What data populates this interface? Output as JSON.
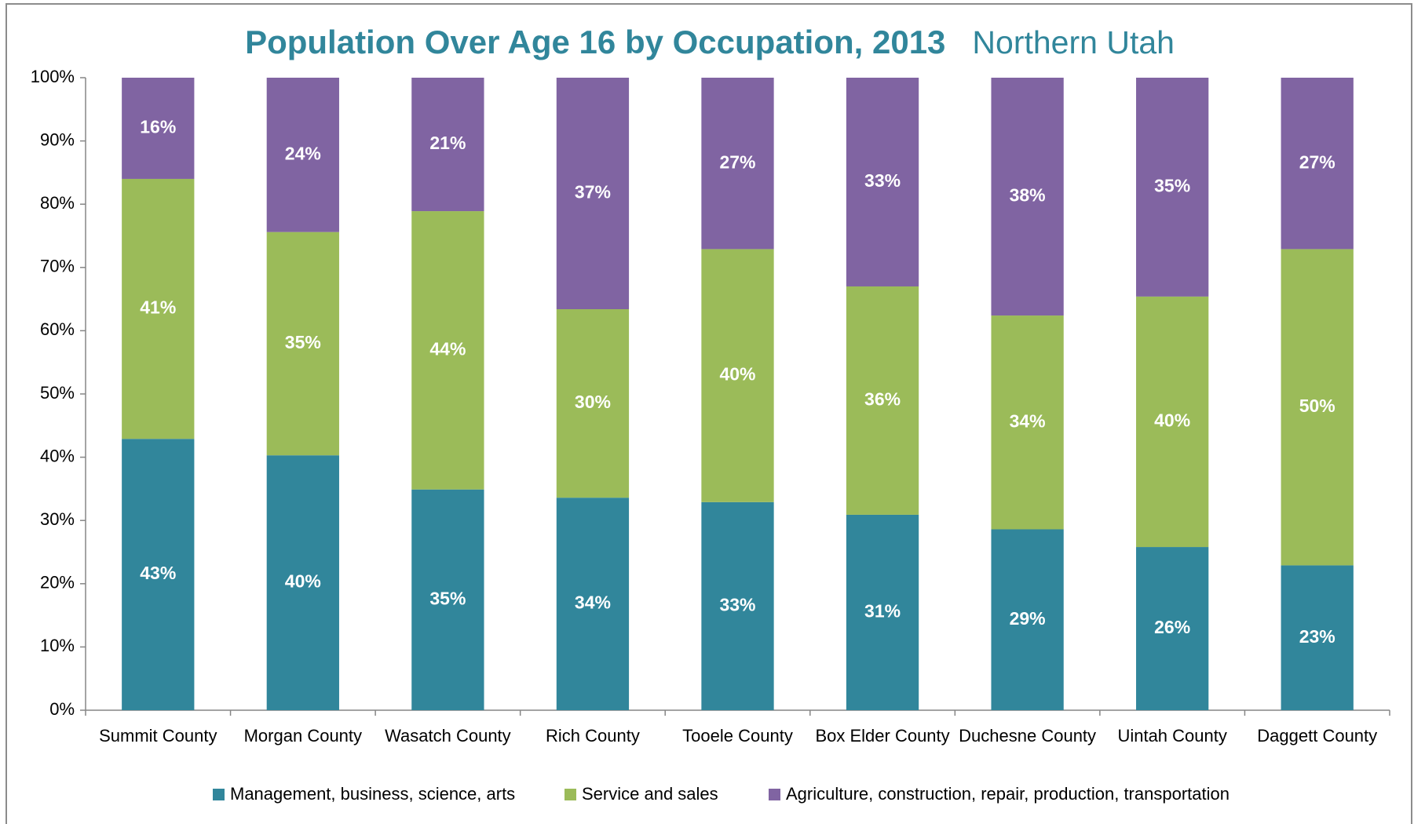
{
  "chart_data": {
    "type": "stacked_bar",
    "title": "Population Over Age 16 by Occupation, 2013",
    "subtitle": "Northern Utah",
    "categories": [
      "Summit County",
      "Morgan County",
      "Wasatch County",
      "Rich County",
      "Tooele County",
      "Box Elder County",
      "Duchesne County",
      "Uintah County",
      "Daggett County"
    ],
    "series": [
      {
        "name": "Management, business, science, arts",
        "color": "#31869b",
        "values": [
          42.9,
          40.3,
          34.9,
          33.6,
          32.9,
          30.9,
          28.6,
          25.8,
          22.9
        ],
        "value_labels": [
          "43%",
          "40%",
          "35%",
          "34%",
          "33%",
          "31%",
          "29%",
          "26%",
          "23%"
        ]
      },
      {
        "name": "Service and sales",
        "color": "#9bbb59",
        "values": [
          41.1,
          35.3,
          44.0,
          29.8,
          40.0,
          36.1,
          33.8,
          39.6,
          50.0
        ],
        "value_labels": [
          "41%",
          "35%",
          "44%",
          "30%",
          "40%",
          "36%",
          "34%",
          "40%",
          "50%"
        ]
      },
      {
        "name": "Agriculture, construction, repair, production, transportation",
        "color": "#8064a2",
        "values": [
          16.0,
          24.4,
          21.1,
          36.6,
          27.1,
          33.0,
          37.6,
          34.6,
          27.1
        ],
        "value_labels": [
          "16%",
          "24%",
          "21%",
          "37%",
          "27%",
          "33%",
          "38%",
          "35%",
          "27%"
        ]
      }
    ],
    "ylim": [
      0,
      100
    ],
    "yticks": [
      {
        "value": 0,
        "label": "0%"
      },
      {
        "value": 10,
        "label": "10%"
      },
      {
        "value": 20,
        "label": "20%"
      },
      {
        "value": 30,
        "label": "30%"
      },
      {
        "value": 40,
        "label": "40%"
      },
      {
        "value": 50,
        "label": "50%"
      },
      {
        "value": 60,
        "label": "60%"
      },
      {
        "value": 70,
        "label": "70%"
      },
      {
        "value": 80,
        "label": "80%"
      },
      {
        "value": 90,
        "label": "90%"
      },
      {
        "value": 100,
        "label": "100%"
      }
    ],
    "grid": false,
    "title_color": "#31869b",
    "legend": "bottom"
  }
}
